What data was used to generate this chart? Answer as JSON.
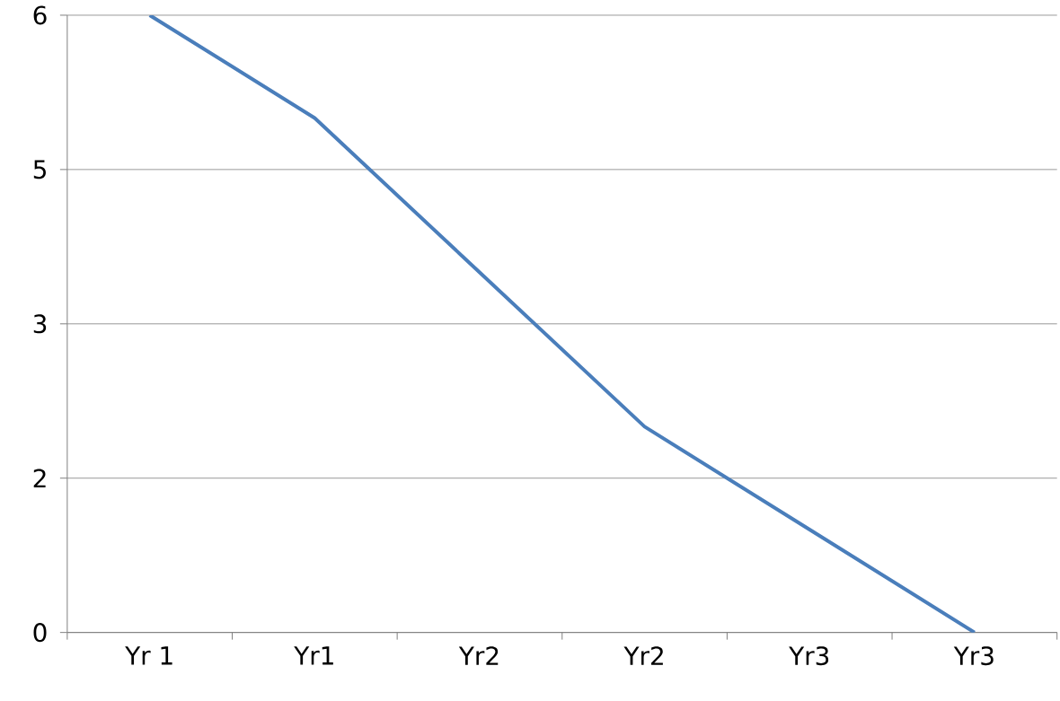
{
  "chart_data": {
    "type": "line",
    "categories": [
      "Yr 1",
      "Yr1",
      "Yr2",
      "Yr2",
      "Yr3",
      "Yr3"
    ],
    "values": [
      6,
      5,
      3.5,
      2,
      1,
      0
    ],
    "color": "#4a7ebb",
    "line_style": "solid",
    "marker": "none",
    "ylim": [
      0,
      6
    ],
    "yticks": [
      {
        "value": 0,
        "label": "0"
      },
      {
        "value": 1.5,
        "label": "2"
      },
      {
        "value": 3,
        "label": "3"
      },
      {
        "value": 4.5,
        "label": "5"
      },
      {
        "value": 6,
        "label": "6"
      }
    ],
    "grid": "y"
  }
}
